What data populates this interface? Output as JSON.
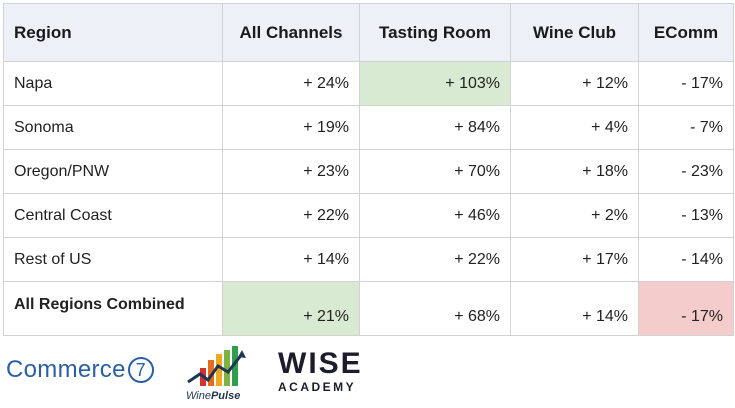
{
  "table": {
    "headers": [
      "Region",
      "All Channels",
      "Tasting Room",
      "Wine Club",
      "EComm"
    ],
    "rows": [
      {
        "region": "Napa",
        "all": "+ 24%",
        "tasting": "+ 103%",
        "club": "+ 12%",
        "ecomm": "- 17%"
      },
      {
        "region": "Sonoma",
        "all": "+ 19%",
        "tasting": "+ 84%",
        "club": "+ 4%",
        "ecomm": "- 7%"
      },
      {
        "region": "Oregon/PNW",
        "all": "+ 23%",
        "tasting": "+ 70%",
        "club": "+ 18%",
        "ecomm": "- 23%"
      },
      {
        "region": "Central Coast",
        "all": "+ 22%",
        "tasting": "+ 46%",
        "club": "+ 2%",
        "ecomm": "- 13%"
      },
      {
        "region": "Rest of US",
        "all": "+ 14%",
        "tasting": "+ 22%",
        "club": "+ 17%",
        "ecomm": "- 14%"
      }
    ],
    "total": {
      "region": "All Regions Combined",
      "all": "+ 21%",
      "tasting": "+ 68%",
      "club": "+ 14%",
      "ecomm": "- 17%"
    },
    "highlight_green": "#d9ead3",
    "highlight_red": "#f4cccc",
    "header_bg": "#eef0f8"
  },
  "logos": {
    "commerce7": {
      "name": "Commerce",
      "badge": "7"
    },
    "winepulse": {
      "prefix": "Wine",
      "suffix": "Pulse"
    },
    "wise": {
      "line1": "WISE",
      "line2": "ACADEMY"
    }
  }
}
